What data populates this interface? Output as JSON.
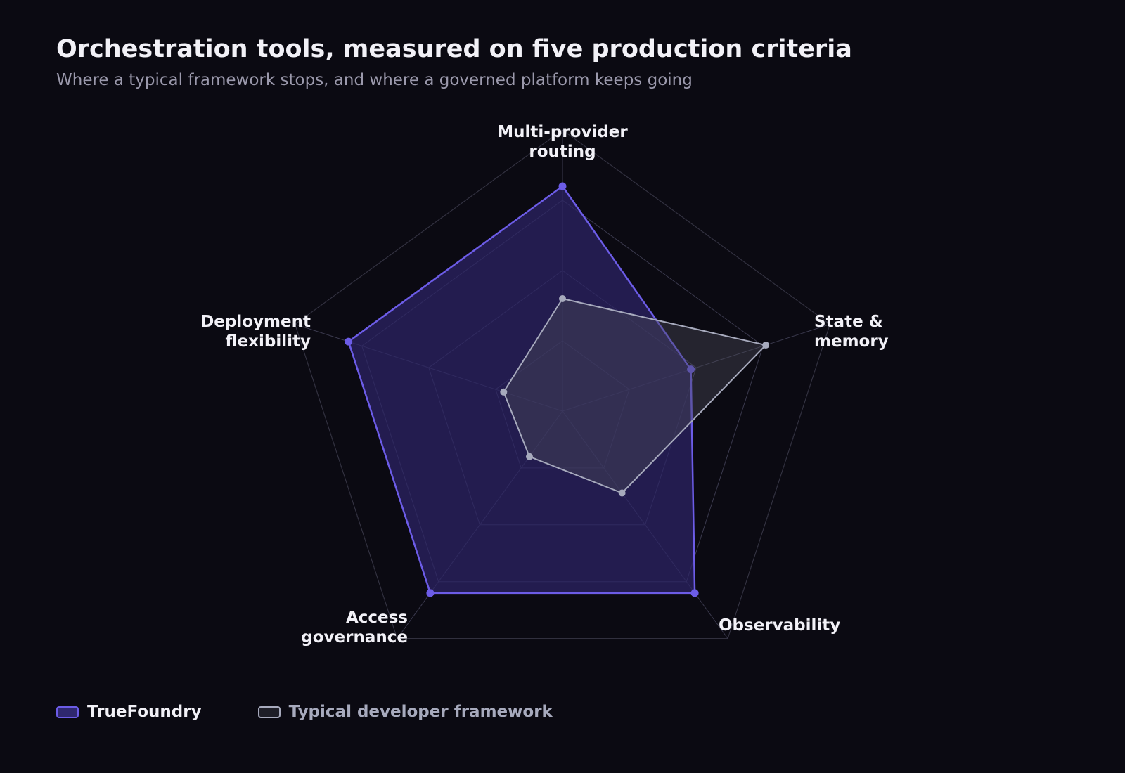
{
  "chart_data": {
    "type": "radar",
    "title": "Orchestration tools, measured on five production criteria",
    "subtitle": "Where a typical framework stops, and where a governed platform keeps going",
    "axes": [
      "Multi-provider routing",
      "State & memory",
      "Observability",
      "Access governance",
      "Deployment flexibility"
    ],
    "range": [
      0,
      5
    ],
    "grid": true,
    "grid_levels": 4,
    "legend_placement": "bottom-left",
    "series": [
      {
        "name": "TrueFoundry",
        "values": [
          4,
          2.4,
          4,
          4,
          4
        ],
        "color": "#6c5ce7",
        "fill": "#2c2466"
      },
      {
        "name": "Typical developer framework",
        "values": [
          2,
          3.8,
          1.8,
          1,
          1.1
        ],
        "color": "#a7aabd",
        "fill": "#4a4a58"
      }
    ]
  }
}
